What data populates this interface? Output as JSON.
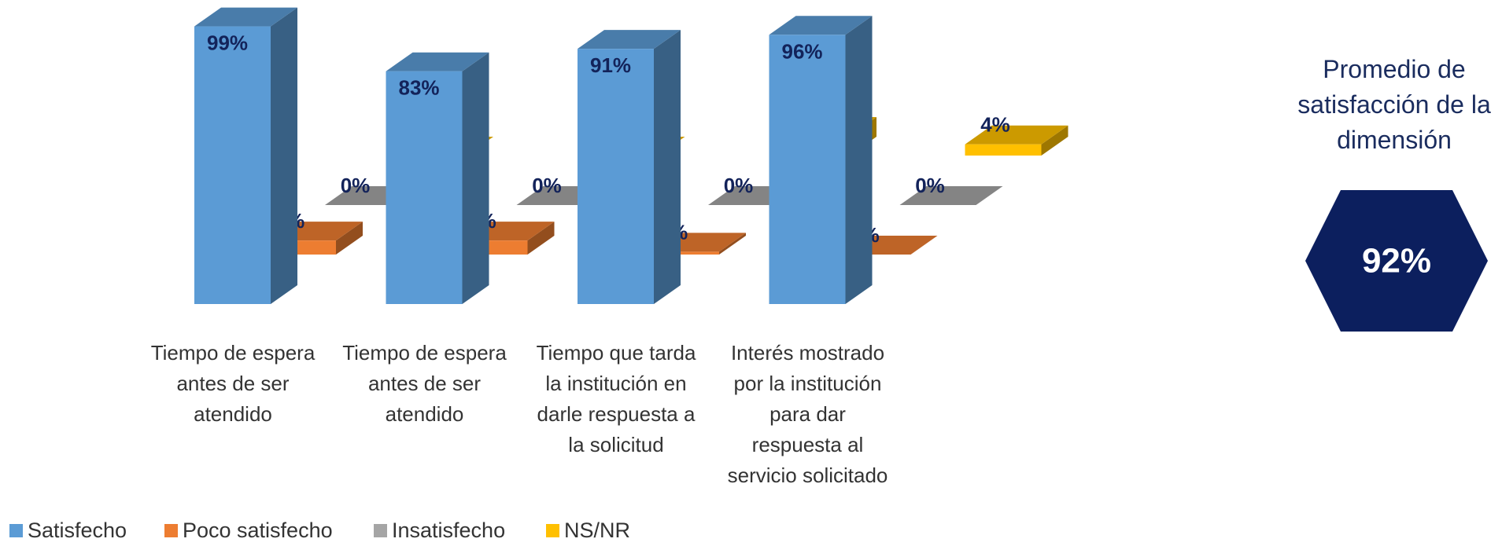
{
  "chart_data": {
    "type": "bar3d",
    "categories": [
      "Tiempo de espera antes de ser atendido",
      "Tiempo de espera antes de ser atendido",
      "Tiempo que tarda la institución en darle respuesta a la solicitud",
      "Interés mostrado por la institución para dar respuesta al servicio solicitado"
    ],
    "series": [
      {
        "name": "Satisfecho",
        "color": "#5b9bd5",
        "values": [
          99,
          83,
          91,
          96
        ],
        "value_labels": [
          "99%",
          "83%",
          "91%",
          "96%"
        ]
      },
      {
        "name": "Poco satisfecho",
        "color": "#ed7d31",
        "values": [
          5,
          5,
          1,
          0
        ],
        "value_labels": [
          "5%",
          "5%",
          "1%",
          "0%"
        ]
      },
      {
        "name": "Insatisfecho",
        "color": "#a5a5a5",
        "values": [
          0,
          0,
          0,
          0
        ],
        "value_labels": [
          "0%",
          "0%",
          "0%",
          "0%"
        ]
      },
      {
        "name": "NS/NR",
        "color": "#ffc000",
        "values": [
          0,
          0,
          7,
          4
        ],
        "value_labels": [
          "0%",
          "0%",
          "7%",
          "4%"
        ]
      }
    ]
  },
  "summary": {
    "title": "Promedio de satisfacción de la dimensión",
    "value": 92,
    "value_label": "92%"
  }
}
